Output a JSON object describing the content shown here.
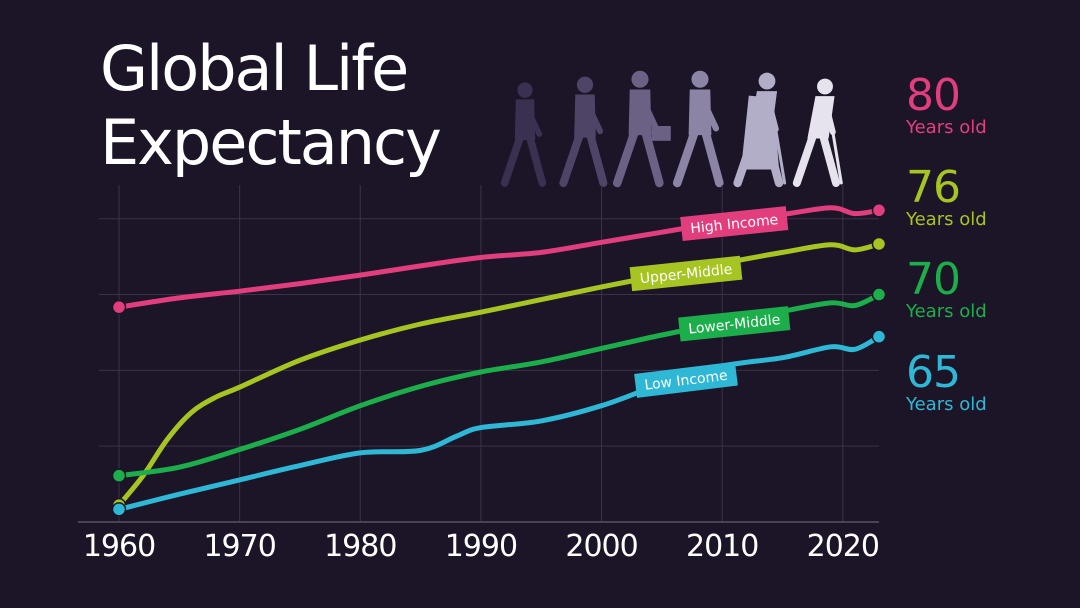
{
  "title": {
    "line1": "Global Life",
    "line2": "Expectancy"
  },
  "colors": {
    "background": "#1c1527",
    "grid": "#3a3347",
    "silhouettes": [
      "#3a3050",
      "#4e4466",
      "#6a6184",
      "#8b84a4",
      "#b3aec7",
      "#e6e3ee"
    ]
  },
  "chart_data": {
    "type": "line",
    "title": "Global Life Expectancy",
    "xlabel": "",
    "ylabel": "",
    "xlim": [
      1960,
      2023
    ],
    "ylim": [
      43,
      83
    ],
    "grid": true,
    "x_ticks": [
      "1960",
      "1970",
      "1980",
      "1990",
      "2000",
      "2010",
      "2020"
    ],
    "series": [
      {
        "name": "High Income",
        "color": "#e23e7e",
        "end_value": "80",
        "end_unit": "Years old",
        "points": [
          [
            1960,
            68.5
          ],
          [
            1965,
            69.6
          ],
          [
            1970,
            70.4
          ],
          [
            1975,
            71.3
          ],
          [
            1980,
            72.3
          ],
          [
            1985,
            73.4
          ],
          [
            1990,
            74.4
          ],
          [
            1995,
            75.0
          ],
          [
            2000,
            76.2
          ],
          [
            2005,
            77.4
          ],
          [
            2010,
            78.6
          ],
          [
            2015,
            79.5
          ],
          [
            2019,
            80.3
          ],
          [
            2021,
            79.6
          ],
          [
            2023,
            80.0
          ]
        ]
      },
      {
        "name": "Upper-Middle",
        "color": "#a6c522",
        "end_value": "76",
        "end_unit": "Years old",
        "points": [
          [
            1960,
            45.0
          ],
          [
            1962,
            48.5
          ],
          [
            1964,
            52.8
          ],
          [
            1966,
            56.0
          ],
          [
            1968,
            57.8
          ],
          [
            1970,
            59.0
          ],
          [
            1975,
            62.2
          ],
          [
            1980,
            64.6
          ],
          [
            1985,
            66.5
          ],
          [
            1990,
            67.9
          ],
          [
            1995,
            69.4
          ],
          [
            2000,
            70.9
          ],
          [
            2005,
            72.3
          ],
          [
            2010,
            73.7
          ],
          [
            2015,
            75.0
          ],
          [
            2019,
            75.9
          ],
          [
            2021,
            75.3
          ],
          [
            2023,
            76.0
          ]
        ]
      },
      {
        "name": "Lower-Middle",
        "color": "#1cae4a",
        "end_value": "70",
        "end_unit": "Years old",
        "points": [
          [
            1960,
            48.5
          ],
          [
            1965,
            49.5
          ],
          [
            1970,
            51.6
          ],
          [
            1975,
            54.0
          ],
          [
            1980,
            56.8
          ],
          [
            1985,
            59.1
          ],
          [
            1990,
            60.8
          ],
          [
            1995,
            62.0
          ],
          [
            2000,
            63.6
          ],
          [
            2005,
            65.2
          ],
          [
            2010,
            66.6
          ],
          [
            2015,
            68.0
          ],
          [
            2019,
            69.0
          ],
          [
            2021,
            68.7
          ],
          [
            2023,
            70.0
          ]
        ]
      },
      {
        "name": "Low Income",
        "color": "#2fb8d6",
        "end_value": "65",
        "end_unit": "Years old",
        "points": [
          [
            1960,
            44.5
          ],
          [
            1965,
            46.3
          ],
          [
            1970,
            48.0
          ],
          [
            1975,
            49.7
          ],
          [
            1980,
            51.2
          ],
          [
            1985,
            51.5
          ],
          [
            1988,
            53.2
          ],
          [
            1990,
            54.2
          ],
          [
            1995,
            55.0
          ],
          [
            2000,
            56.8
          ],
          [
            2005,
            59.4
          ],
          [
            2010,
            61.5
          ],
          [
            2015,
            62.5
          ],
          [
            2019,
            63.8
          ],
          [
            2021,
            63.5
          ],
          [
            2023,
            65.0
          ]
        ]
      }
    ]
  }
}
